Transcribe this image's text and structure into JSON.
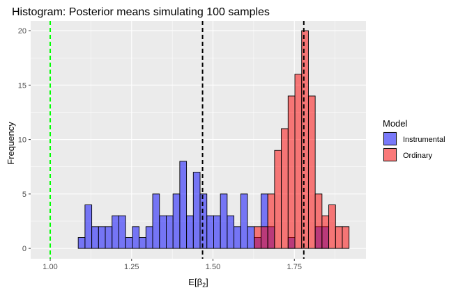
{
  "chart_data": {
    "type": "histogram",
    "title": "Histogram: Posterior means simulating 100 samples",
    "xlabel": "E[",
    "xlabel_symbol": "β",
    "xlabel_sub": "2",
    "xlabel_close": "]",
    "ylabel": "Frequency",
    "xlim": [
      0.94,
      1.97
    ],
    "ylim": [
      -0.95,
      20.9
    ],
    "x_ticks": [
      1.0,
      1.25,
      1.5,
      1.75
    ],
    "x_tick_labels": [
      "1.00",
      "1.25",
      "1.50",
      "1.75"
    ],
    "y_ticks": [
      0,
      5,
      10,
      15,
      20
    ],
    "y_tick_labels": [
      "0",
      "5",
      "10",
      "15",
      "20"
    ],
    "grid": true,
    "bin_width": 0.0208,
    "x_start": 1.086,
    "legend": {
      "title": "Model",
      "position": "right",
      "entries": [
        {
          "label": "Instrumental",
          "color": "#0000FF"
        },
        {
          "label": "Ordinary",
          "color": "#FF0000"
        }
      ]
    },
    "series": [
      {
        "name": "Instrumental",
        "color": "#0000FF",
        "counts": [
          1,
          4,
          2,
          2,
          2,
          3,
          3,
          1,
          2,
          1,
          2,
          5,
          3,
          3,
          5,
          8,
          3,
          7,
          5,
          3,
          3,
          5,
          3,
          2,
          5,
          2,
          1,
          5,
          2,
          0,
          0,
          1,
          0,
          0,
          0,
          2,
          2
        ]
      },
      {
        "name": "Ordinary",
        "color": "#FF0000",
        "counts": [
          0,
          0,
          0,
          0,
          0,
          0,
          0,
          0,
          0,
          0,
          0,
          0,
          0,
          0,
          0,
          0,
          0,
          0,
          0,
          0,
          0,
          0,
          0,
          0,
          0,
          0,
          2,
          2,
          5,
          9,
          11,
          14,
          16,
          20,
          14,
          5,
          3,
          4,
          2,
          2
        ]
      }
    ],
    "vlines": [
      {
        "x": 1.0,
        "color": "#00FF00",
        "style": "dashed"
      },
      {
        "x": 1.468,
        "color": "#000000",
        "style": "dashed"
      },
      {
        "x": 1.779,
        "color": "#000000",
        "style": "dashed"
      }
    ]
  }
}
